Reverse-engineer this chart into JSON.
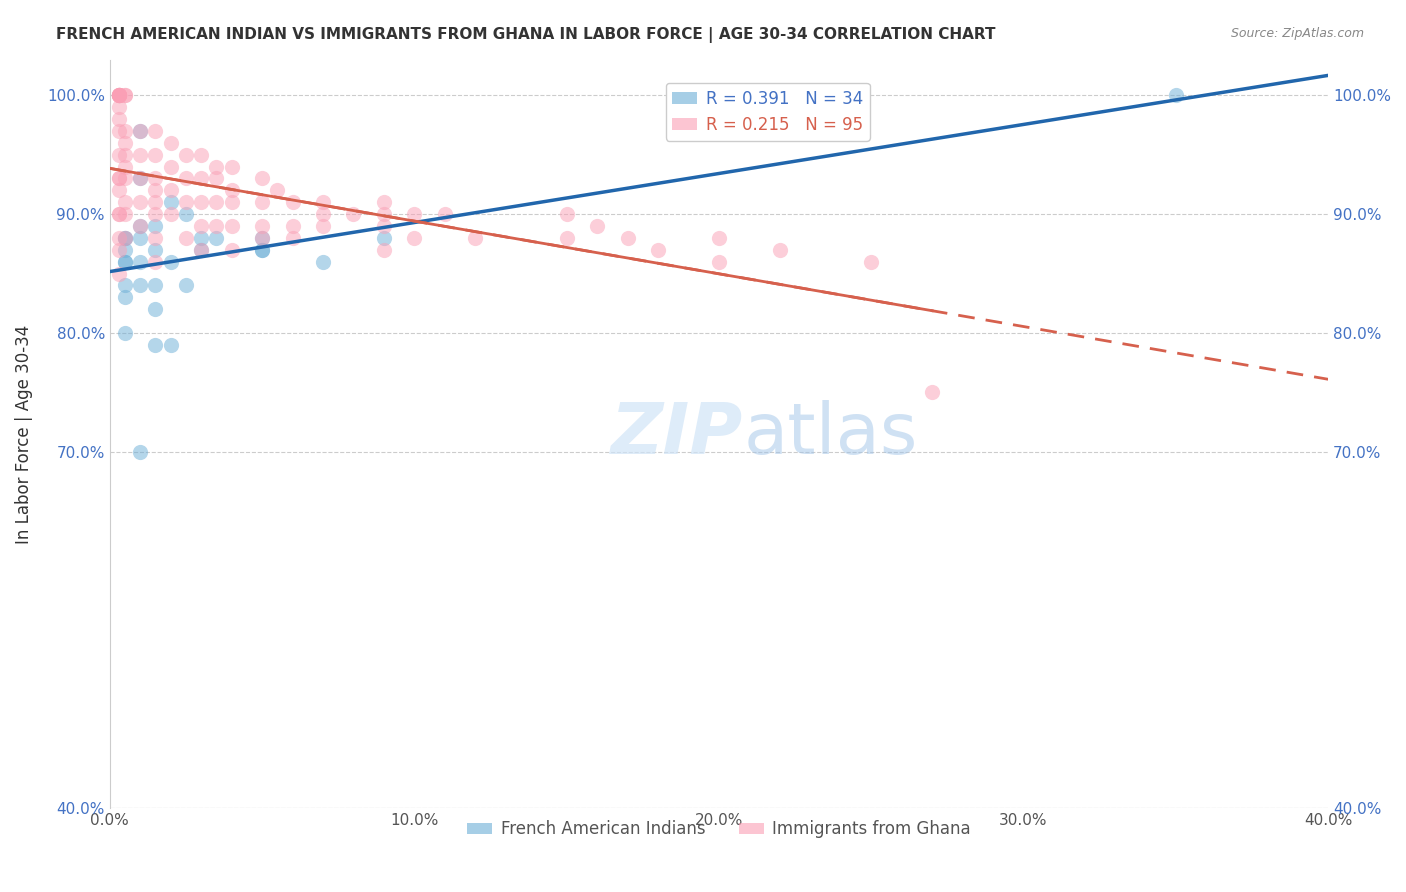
{
  "title": "FRENCH AMERICAN INDIAN VS IMMIGRANTS FROM GHANA IN LABOR FORCE | AGE 30-34 CORRELATION CHART",
  "source": "Source: ZipAtlas.com",
  "xlabel": "",
  "ylabel": "In Labor Force | Age 30-34",
  "xlim": [
    0.0,
    0.4
  ],
  "ylim": [
    0.4,
    1.03
  ],
  "ytick_labels": [
    "40.0%",
    "70.0%",
    "80.0%",
    "90.0%",
    "100.0%"
  ],
  "ytick_values": [
    0.4,
    0.7,
    0.8,
    0.9,
    1.0
  ],
  "xtick_labels": [
    "0.0%",
    "10.0%",
    "20.0%",
    "30.0%",
    "40.0%"
  ],
  "xtick_values": [
    0.0,
    0.1,
    0.2,
    0.3,
    0.4
  ],
  "blue_color": "#6baed6",
  "pink_color": "#fa9fb5",
  "blue_line_color": "#2166ac",
  "pink_line_color": "#d6604d",
  "legend_blue_label": "R = 0.391   N = 34",
  "legend_pink_label": "R = 0.215   N = 95",
  "legend_items_label": [
    "French American Indians",
    "Immigrants from Ghana"
  ],
  "watermark": "ZIPatlas",
  "blue_R": 0.391,
  "blue_N": 34,
  "pink_R": 0.215,
  "pink_N": 95,
  "blue_scatter_x": [
    0.005,
    0.005,
    0.005,
    0.005,
    0.005,
    0.005,
    0.005,
    0.005,
    0.01,
    0.01,
    0.01,
    0.01,
    0.01,
    0.01,
    0.01,
    0.015,
    0.015,
    0.015,
    0.015,
    0.015,
    0.02,
    0.02,
    0.02,
    0.025,
    0.025,
    0.03,
    0.03,
    0.035,
    0.05,
    0.05,
    0.05,
    0.07,
    0.09,
    0.35
  ],
  "blue_scatter_y": [
    0.84,
    0.86,
    0.87,
    0.88,
    0.88,
    0.86,
    0.83,
    0.8,
    0.97,
    0.93,
    0.89,
    0.88,
    0.86,
    0.84,
    0.7,
    0.89,
    0.87,
    0.84,
    0.82,
    0.79,
    0.91,
    0.86,
    0.79,
    0.9,
    0.84,
    0.88,
    0.87,
    0.88,
    0.87,
    0.87,
    0.88,
    0.86,
    0.88,
    1.0
  ],
  "pink_scatter_x": [
    0.003,
    0.003,
    0.003,
    0.003,
    0.003,
    0.003,
    0.003,
    0.003,
    0.003,
    0.003,
    0.003,
    0.003,
    0.003,
    0.003,
    0.003,
    0.003,
    0.003,
    0.003,
    0.003,
    0.003,
    0.005,
    0.005,
    0.005,
    0.005,
    0.005,
    0.005,
    0.005,
    0.005,
    0.005,
    0.005,
    0.01,
    0.01,
    0.01,
    0.01,
    0.01,
    0.015,
    0.015,
    0.015,
    0.015,
    0.015,
    0.015,
    0.015,
    0.015,
    0.02,
    0.02,
    0.02,
    0.02,
    0.025,
    0.025,
    0.025,
    0.025,
    0.03,
    0.03,
    0.03,
    0.03,
    0.03,
    0.035,
    0.035,
    0.035,
    0.035,
    0.04,
    0.04,
    0.04,
    0.04,
    0.04,
    0.05,
    0.05,
    0.05,
    0.05,
    0.055,
    0.06,
    0.06,
    0.06,
    0.07,
    0.07,
    0.07,
    0.08,
    0.09,
    0.09,
    0.09,
    0.09,
    0.1,
    0.1,
    0.11,
    0.12,
    0.15,
    0.15,
    0.16,
    0.17,
    0.18,
    0.2,
    0.2,
    0.22,
    0.25,
    0.27
  ],
  "pink_scatter_y": [
    1.0,
    1.0,
    1.0,
    1.0,
    1.0,
    1.0,
    1.0,
    1.0,
    0.99,
    0.98,
    0.97,
    0.95,
    0.93,
    0.93,
    0.92,
    0.9,
    0.9,
    0.88,
    0.87,
    0.85,
    1.0,
    1.0,
    0.97,
    0.96,
    0.95,
    0.94,
    0.93,
    0.91,
    0.9,
    0.88,
    0.97,
    0.95,
    0.93,
    0.91,
    0.89,
    0.97,
    0.95,
    0.93,
    0.92,
    0.91,
    0.9,
    0.88,
    0.86,
    0.96,
    0.94,
    0.92,
    0.9,
    0.95,
    0.93,
    0.91,
    0.88,
    0.95,
    0.93,
    0.91,
    0.89,
    0.87,
    0.94,
    0.93,
    0.91,
    0.89,
    0.94,
    0.92,
    0.91,
    0.89,
    0.87,
    0.93,
    0.91,
    0.89,
    0.88,
    0.92,
    0.91,
    0.89,
    0.88,
    0.91,
    0.9,
    0.89,
    0.9,
    0.91,
    0.9,
    0.89,
    0.87,
    0.9,
    0.88,
    0.9,
    0.88,
    0.9,
    0.88,
    0.89,
    0.88,
    0.87,
    0.88,
    0.86,
    0.87,
    0.86,
    0.75
  ]
}
